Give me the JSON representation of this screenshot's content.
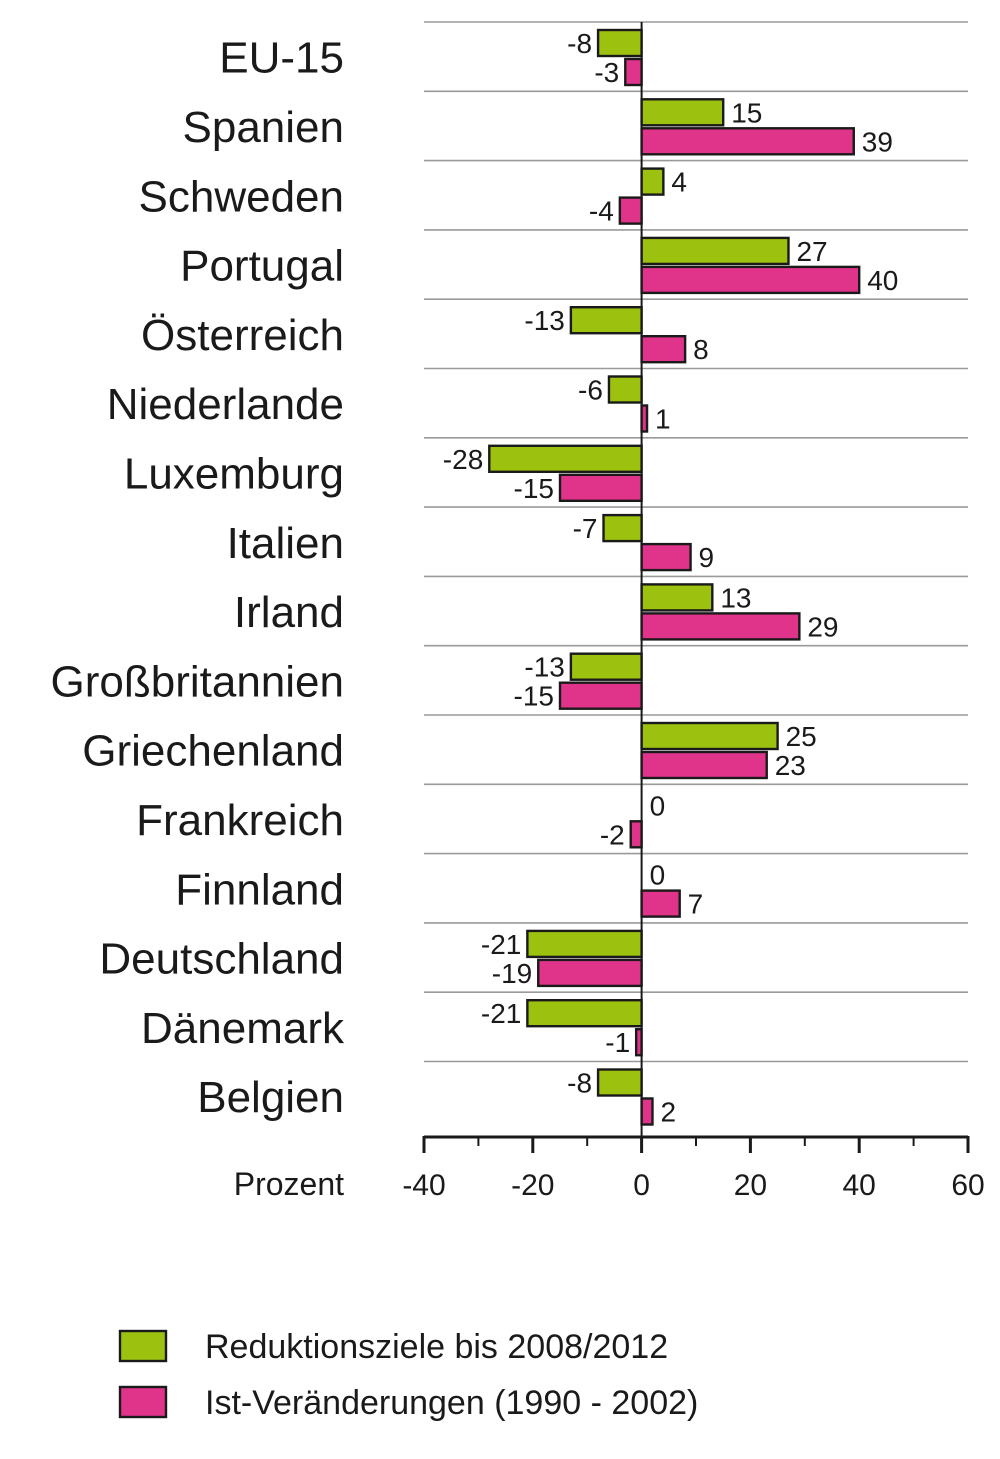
{
  "chart_data": {
    "type": "bar",
    "orientation": "horizontal",
    "categories": [
      "EU-15",
      "Spanien",
      "Schweden",
      "Portugal",
      "Österreich",
      "Niederlande",
      "Luxemburg",
      "Italien",
      "Irland",
      "Großbritannien",
      "Griechenland",
      "Frankreich",
      "Finnland",
      "Deutschland",
      "Dänemark",
      "Belgien"
    ],
    "series": [
      {
        "name": "Reduktionsziele bis 2008/2012",
        "color": "#9dc10f",
        "values": [
          -8,
          15,
          4,
          27,
          -13,
          -6,
          -28,
          -7,
          13,
          -13,
          25,
          0,
          0,
          -21,
          -21,
          -8
        ],
        "labels": [
          "-8",
          "15",
          "4",
          "27",
          "-13",
          "-6",
          "-28",
          "-7",
          "13",
          "-13",
          "25",
          "0",
          "0",
          "-21",
          "-21",
          "-8"
        ]
      },
      {
        "name": "Ist-Veränderungen (1990 - 2002)",
        "color": "#e0338a",
        "values": [
          -3,
          39,
          -4,
          40,
          8,
          1,
          -15,
          9,
          29,
          -15,
          23,
          -2,
          7,
          -19,
          -1,
          2
        ],
        "labels": [
          "-3",
          "39",
          "-4",
          "40",
          "8",
          "1",
          "-15",
          "9",
          "29",
          "-15",
          "23",
          "-2",
          "7",
          "-19",
          "-1",
          "2"
        ]
      }
    ],
    "xlabel": "Prozent",
    "xlim": [
      -40,
      60
    ],
    "xticks": [
      -40,
      -20,
      0,
      20,
      40,
      60
    ],
    "xtick_labels": [
      "-40",
      "-20",
      "0",
      "20",
      "40",
      "60"
    ],
    "grid": "horizontal separators between categories",
    "legend_position": "bottom-left",
    "colors": {
      "reduction": "#9dc10f",
      "actual": "#e0338a",
      "outline": "#1a1a1a",
      "gridline": "#9a9a9a"
    }
  }
}
